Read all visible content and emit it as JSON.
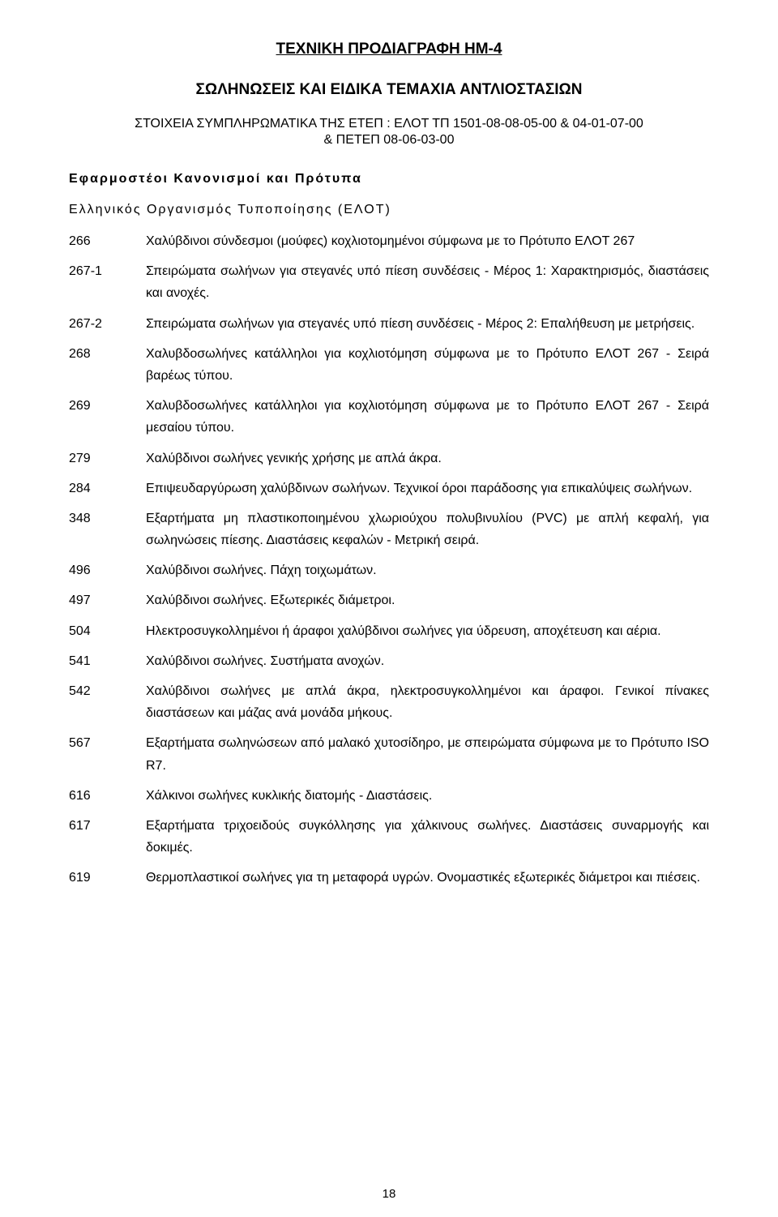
{
  "title": "ΤΕΧΝΙΚΗ ΠΡΟΔΙΑΓΡΑΦΗ ΗΜ-4",
  "subtitle": "ΣΩΛΗΝΩΣΕΙΣ ΚΑΙ ΕΙΔΙΚΑ ΤΕΜΑΧΙΑ ΑΝΤΛΙΟΣΤΑΣΙΩΝ",
  "ref_line1": "ΣΤΟΙΧΕΙΑ ΣΥΜΠΛΗΡΩΜΑΤΙΚΑ ΤΗΣ ΕΤΕΠ : ΕΛΟΤ ΤΠ 1501-08-08-05-00 & 04-01-07-00",
  "ref_line2": "& ΠΕΤΕΠ 08-06-03-00",
  "section_heading": "Εφαρμοστέοι Κανονισμοί και Πρότυπα",
  "sub_heading": "Ελληνικός Οργανισμός Τυποποίησης (ΕΛΟΤ)",
  "entries": [
    {
      "num": "266",
      "text": "Χαλύβδινοι σύνδεσμοι (μούφες) κοχλιοτομημένοι σύμφωνα με το Πρότυπο ΕΛΟΤ 267"
    },
    {
      "num": "267-1",
      "text": "Σπειρώματα σωλήνων για στεγανές υπό πίεση συνδέσεις - Μέρος 1: Χαρακτηρισμός, διαστάσεις και ανοχές."
    },
    {
      "num": "267-2",
      "text": "Σπειρώματα σωλήνων για στεγανές υπό πίεση συνδέσεις - Μέρος 2: Επαλήθευση με μετρήσεις."
    },
    {
      "num": "268",
      "text": "Χαλυβδοσωλήνες κατάλληλοι για κοχλιοτόμηση σύμφωνα με το Πρότυπο ΕΛΟΤ 267 - Σειρά βαρέως τύπου."
    },
    {
      "num": "269",
      "text": "Χαλυβδοσωλήνες κατάλληλοι για κοχλιοτόμηση σύμφωνα με το Πρότυπο ΕΛΟΤ 267 - Σειρά μεσαίου τύπου."
    },
    {
      "num": "279",
      "text": "Χαλύβδινοι σωλήνες γενικής χρήσης με απλά άκρα."
    },
    {
      "num": "284",
      "text": "Επιψευδαργύρωση χαλύβδινων σωλήνων. Τεχνικοί όροι παράδοσης για επικαλύψεις σωλήνων."
    },
    {
      "num": "348",
      "text": "Εξαρτήματα μη πλαστικοποιημένου χλωριούχου πολυβινυλίου (PVC) με απλή κεφαλή, για σωληνώσεις πίεσης. Διαστάσεις κεφαλών - Μετρική σειρά."
    },
    {
      "num": "496",
      "text": "Χαλύβδινοι σωλήνες. Πάχη τοιχωμάτων."
    },
    {
      "num": "497",
      "text": "Χαλύβδινοι σωλήνες. Εξωτερικές διάμετροι."
    },
    {
      "num": "504",
      "text": "Ηλεκτροσυγκολλημένοι ή άραφοι χαλύβδινοι σωλήνες για ύδρευση, αποχέτευση και αέρια."
    },
    {
      "num": "541",
      "text": "Χαλύβδινοι σωλήνες. Συστήματα ανοχών."
    },
    {
      "num": "542",
      "text": "Χαλύβδινοι σωλήνες με απλά άκρα, ηλεκτροσυγκολλημένοι και άραφοι. Γενικοί πίνακες διαστάσεων και μάζας ανά μονάδα μήκους.",
      "indent": true
    },
    {
      "num": "567",
      "text": "Εξαρτήματα σωληνώσεων από μαλακό χυτοσίδηρο, με σπειρώματα σύμφωνα με το Πρότυπο ISO R7."
    },
    {
      "num": "616",
      "text": "Χάλκινοι σωλήνες κυκλικής διατομής - Διαστάσεις."
    },
    {
      "num": "617",
      "text": "Εξαρτήματα τριχοειδούς συγκόλλησης για χάλκινους σωλήνες. Διαστάσεις συναρμογής και δοκιμές."
    },
    {
      "num": "619",
      "text": "Θερμοπλαστικοί σωλήνες για τη μεταφορά υγρών. Ονομαστικές εξωτερικές διάμετροι και πιέσεις."
    }
  ],
  "page_number": "18"
}
